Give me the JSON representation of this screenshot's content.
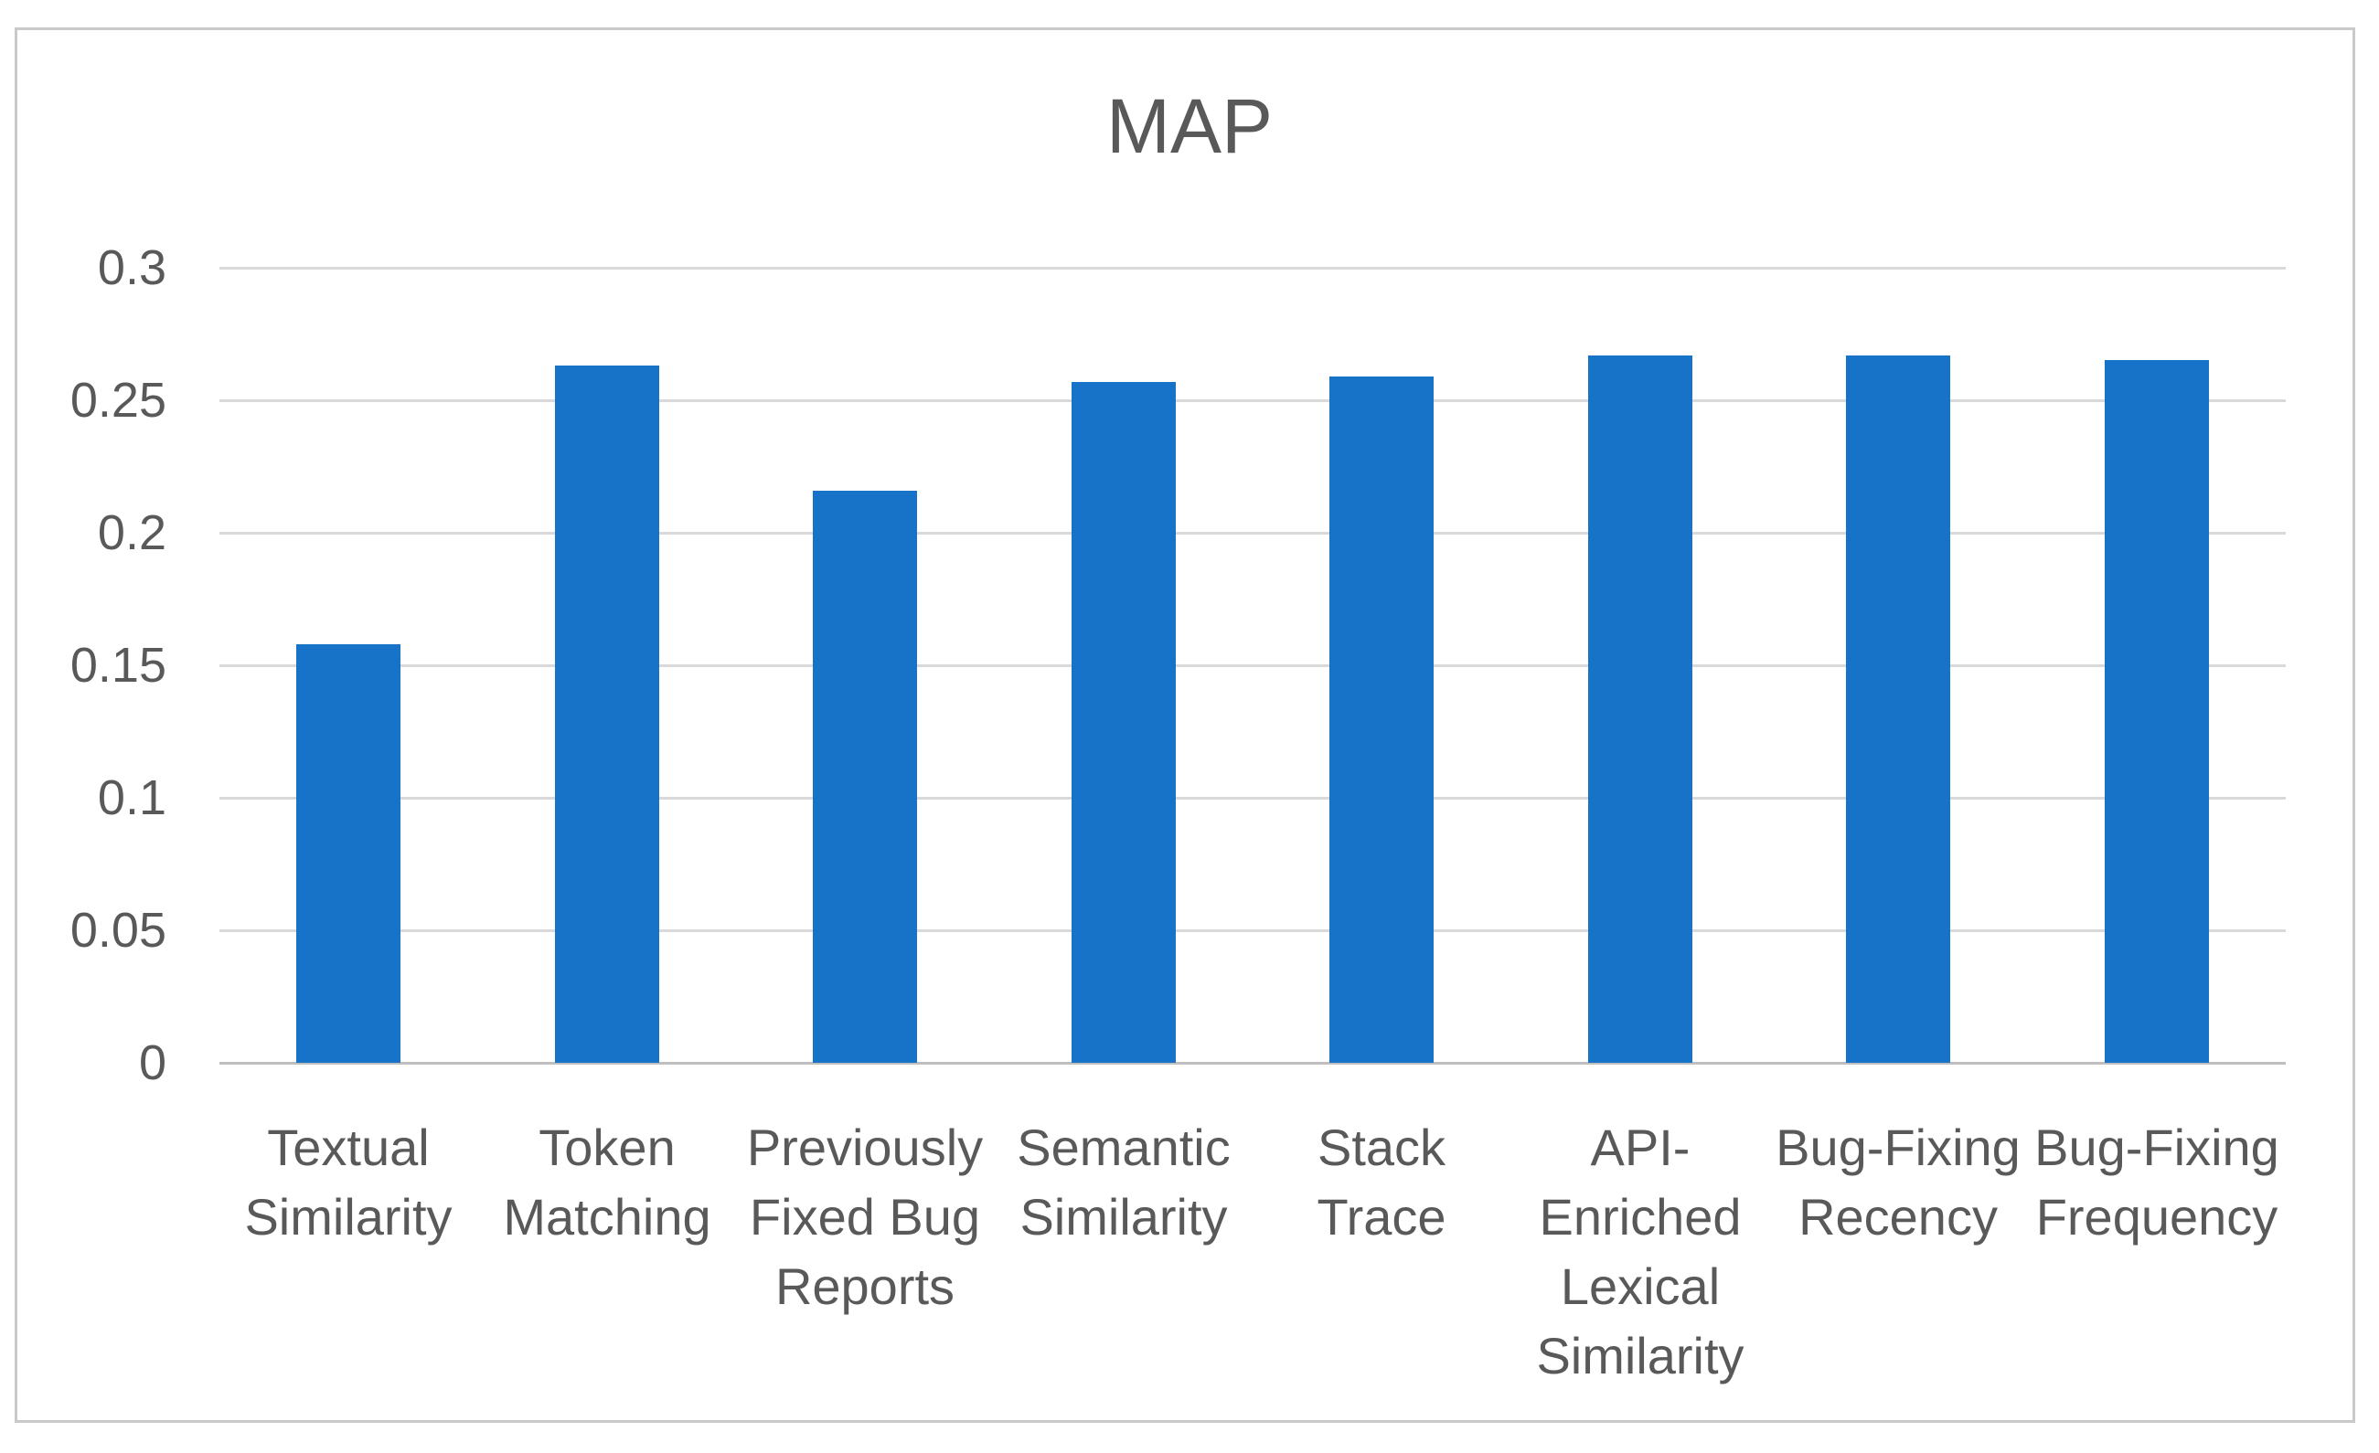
{
  "chart_data": {
    "type": "bar",
    "title": "MAP",
    "categories": [
      "Textual Similarity",
      "Token Matching",
      "Previously Fixed Bug Reports",
      "Semantic Similarity",
      "Stack Trace",
      "API-Enriched Lexical Similarity",
      "Bug-Fixing Recency",
      "Bug-Fixing Frequency"
    ],
    "category_label_lines": [
      [
        "Textual",
        "Similarity"
      ],
      [
        "Token",
        "Matching"
      ],
      [
        "Previously",
        "Fixed Bug",
        "Reports"
      ],
      [
        "Semantic",
        "Similarity"
      ],
      [
        "Stack",
        "Trace"
      ],
      [
        "API-",
        "Enriched",
        "Lexical",
        "Similarity"
      ],
      [
        "Bug-Fixing",
        "Recency"
      ],
      [
        "Bug-Fixing",
        "Frequency"
      ]
    ],
    "values": [
      0.158,
      0.263,
      0.216,
      0.257,
      0.259,
      0.267,
      0.267,
      0.265
    ],
    "xlabel": "",
    "ylabel": "",
    "ylim": [
      0,
      0.3
    ],
    "ytick_step": 0.05,
    "ytick_labels": [
      "0",
      "0.05",
      "0.1",
      "0.15",
      "0.2",
      "0.25",
      "0.3"
    ],
    "grid": true,
    "legend_position": "none",
    "bar_color": "#1773C8",
    "gridline_color": "#D9D9D9",
    "axis_line_color": "#BFBFBF",
    "text_color": "#595959",
    "frame_border_color": "#C9C9C9",
    "background_color": "#FFFFFF"
  }
}
